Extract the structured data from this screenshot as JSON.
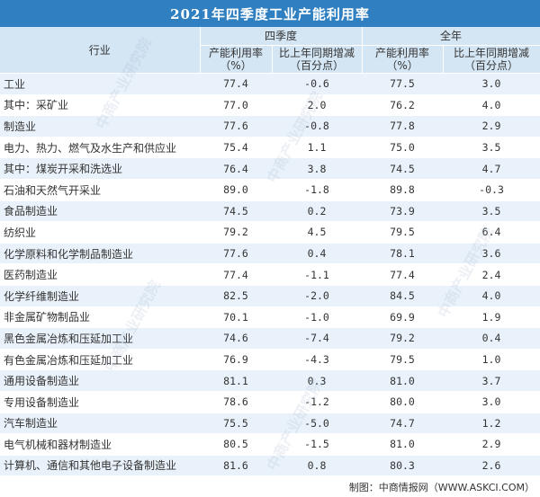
{
  "title": "2021年四季度工业产能利用率",
  "header": {
    "industry": "行业",
    "q4": "四季度",
    "year": "全年",
    "rate": "产能利用率（%）",
    "change": "比上年同期增减（百分点）"
  },
  "rows": [
    {
      "name": "工业",
      "q4_rate": "77.4",
      "q4_change": "-0.6",
      "year_rate": "77.5",
      "year_change": "3.0"
    },
    {
      "name": "其中：采矿业",
      "q4_rate": "77.0",
      "q4_change": "2.0",
      "year_rate": "76.2",
      "year_change": "4.0"
    },
    {
      "name": "制造业",
      "q4_rate": "77.6",
      "q4_change": "-0.8",
      "year_rate": "77.8",
      "year_change": "2.9"
    },
    {
      "name": "电力、热力、燃气及水生产和供应业",
      "q4_rate": "75.4",
      "q4_change": "1.1",
      "year_rate": "75.0",
      "year_change": "3.5"
    },
    {
      "name": "其中：煤炭开采和洗选业",
      "q4_rate": "76.4",
      "q4_change": "3.8",
      "year_rate": "74.5",
      "year_change": "4.7"
    },
    {
      "name": "石油和天然气开采业",
      "q4_rate": "89.0",
      "q4_change": "-1.8",
      "year_rate": "89.8",
      "year_change": "-0.3"
    },
    {
      "name": "食品制造业",
      "q4_rate": "74.5",
      "q4_change": "0.2",
      "year_rate": "73.9",
      "year_change": "3.5"
    },
    {
      "name": "纺织业",
      "q4_rate": "79.2",
      "q4_change": "4.5",
      "year_rate": "79.5",
      "year_change": "6.4"
    },
    {
      "name": "化学原料和化学制品制造业",
      "q4_rate": "77.6",
      "q4_change": "0.4",
      "year_rate": "78.1",
      "year_change": "3.6"
    },
    {
      "name": "医药制造业",
      "q4_rate": "77.4",
      "q4_change": "-1.1",
      "year_rate": "77.4",
      "year_change": "2.4"
    },
    {
      "name": "化学纤维制造业",
      "q4_rate": "82.5",
      "q4_change": "-2.0",
      "year_rate": "84.5",
      "year_change": "4.0"
    },
    {
      "name": "非金属矿物制品业",
      "q4_rate": "70.1",
      "q4_change": "-1.0",
      "year_rate": "69.9",
      "year_change": "1.9"
    },
    {
      "name": "黑色金属冶炼和压延加工业",
      "q4_rate": "74.6",
      "q4_change": "-7.4",
      "year_rate": "79.2",
      "year_change": "0.4"
    },
    {
      "name": "有色金属冶炼和压延加工业",
      "q4_rate": "76.9",
      "q4_change": "-4.3",
      "year_rate": "79.5",
      "year_change": "1.0"
    },
    {
      "name": "通用设备制造业",
      "q4_rate": "81.1",
      "q4_change": "0.3",
      "year_rate": "81.0",
      "year_change": "3.7"
    },
    {
      "name": "专用设备制造业",
      "q4_rate": "78.6",
      "q4_change": "-1.2",
      "year_rate": "80.0",
      "year_change": "3.0"
    },
    {
      "name": "汽车制造业",
      "q4_rate": "75.5",
      "q4_change": "-5.0",
      "year_rate": "74.7",
      "year_change": "1.2"
    },
    {
      "name": "电气机械和器材制造业",
      "q4_rate": "80.5",
      "q4_change": "-1.5",
      "year_rate": "81.0",
      "year_change": "2.9"
    },
    {
      "name": "计算机、通信和其他电子设备制造业",
      "q4_rate": "81.6",
      "q4_change": "0.8",
      "year_rate": "80.3",
      "year_change": "2.6"
    }
  ],
  "footer": "制图：中商情报网（WWW.ASKCI.COM）",
  "watermark": "中商产业研究院",
  "colors": {
    "header_bar": "#2f7fc1",
    "header_cells": "#d4e6f4",
    "stripe": "#e9f2fa"
  }
}
